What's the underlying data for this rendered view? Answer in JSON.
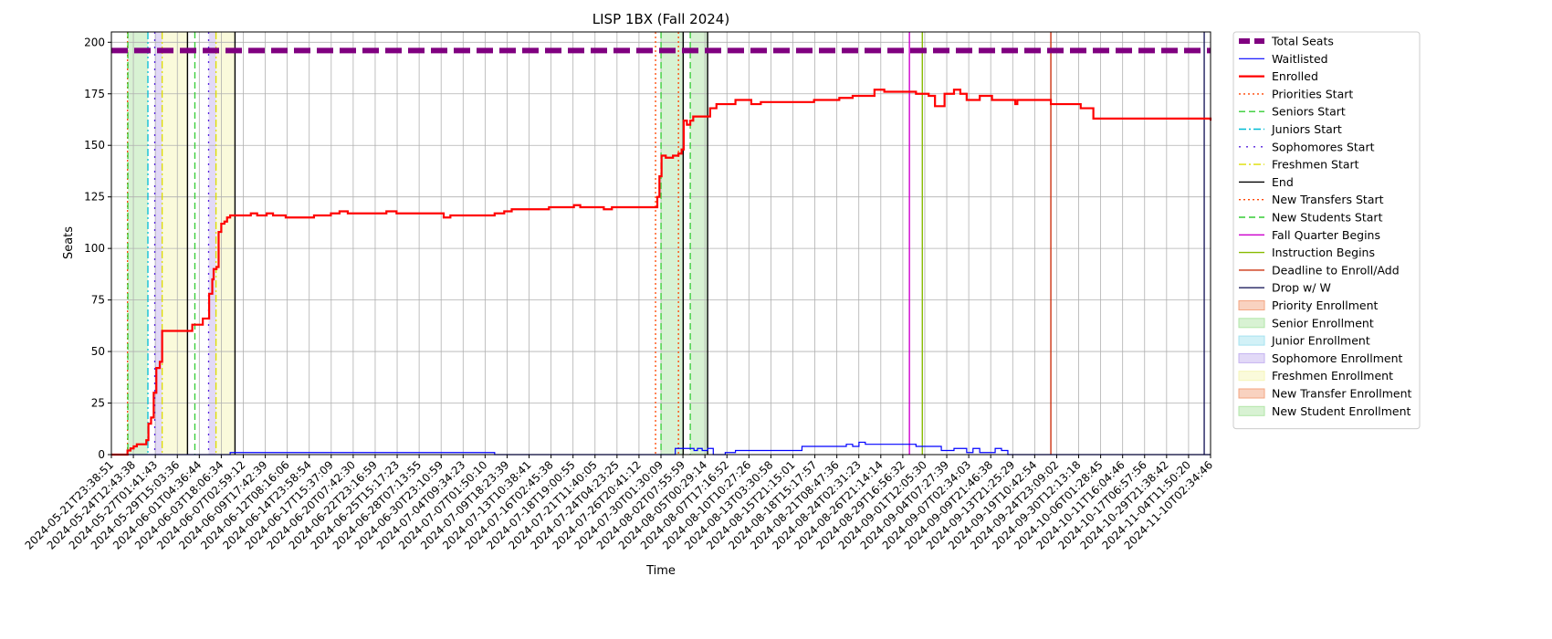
{
  "chart_data": {
    "type": "line",
    "title": "LISP 1BX (Fall 2024)",
    "xlabel": "Time",
    "ylabel": "Seats",
    "ylim": [
      0,
      205
    ],
    "yticks": [
      0,
      25,
      50,
      75,
      100,
      125,
      150,
      175,
      200
    ],
    "grid": true,
    "legend_position": "outside-right",
    "x_range": [
      "2024-05-21T23:38:51",
      "2024-11-11T12:00:00"
    ],
    "xtick_labels": [
      "2024-05-21T23:38:51",
      "2024-05-24T12:43:38",
      "2024-05-27T01:41:43",
      "2024-05-29T15:03:36",
      "2024-06-01T04:36:44",
      "2024-06-03T18:06:34",
      "2024-06-07T02:59:12",
      "2024-06-09T17:42:39",
      "2024-06-12T08:16:06",
      "2024-06-14T23:58:54",
      "2024-06-17T15:37:09",
      "2024-06-20T07:42:30",
      "2024-06-22T23:16:59",
      "2024-06-25T15:17:23",
      "2024-06-28T07:13:55",
      "2024-06-30T23:10:59",
      "2024-07-04T09:34:23",
      "2024-07-07T01:50:10",
      "2024-07-09T18:23:39",
      "2024-07-13T10:38:41",
      "2024-07-16T02:45:38",
      "2024-07-18T19:00:55",
      "2024-07-21T11:40:05",
      "2024-07-24T04:23:25",
      "2024-07-26T20:41:12",
      "2024-07-30T01:30:09",
      "2024-08-02T07:55:59",
      "2024-08-05T00:29:14",
      "2024-08-07T17:16:52",
      "2024-08-10T10:27:26",
      "2024-08-13T03:30:58",
      "2024-08-15T21:15:01",
      "2024-08-18T15:17:57",
      "2024-08-21T08:47:36",
      "2024-08-24T02:31:23",
      "2024-08-26T21:14:14",
      "2024-08-29T16:56:32",
      "2024-09-01T12:05:30",
      "2024-09-04T07:27:39",
      "2024-09-07T02:34:03",
      "2024-09-09T21:46:38",
      "2024-09-13T21:25:29",
      "2024-09-19T10:42:54",
      "2024-09-24T23:09:02",
      "2024-09-30T12:13:18",
      "2024-10-06T01:28:45",
      "2024-10-11T16:04:46",
      "2024-10-17T06:57:56",
      "2024-10-29T21:38:42",
      "2024-11-04T11:50:20",
      "2024-11-10T02:34:46"
    ],
    "series": [
      {
        "name": "Total Seats",
        "color": "#800080",
        "style": "dashed-thick",
        "points": [
          [
            "2024-05-21T23:38:51",
            196
          ],
          [
            "2024-11-11T12:00:00",
            196
          ]
        ]
      },
      {
        "name": "Waitlisted",
        "color": "#0000ff",
        "style": "solid-thin",
        "points": [
          [
            "2024-05-21T23:38:51",
            0
          ],
          [
            "2024-06-09T17:00:00",
            0
          ],
          [
            "2024-06-09T17:42:39",
            1
          ],
          [
            "2024-07-21T11:40:05",
            1
          ],
          [
            "2024-07-21T11:45:00",
            0
          ],
          [
            "2024-08-18T16:00:00",
            0
          ],
          [
            "2024-08-19T00:00:00",
            3
          ],
          [
            "2024-08-21T08:47:36",
            3
          ],
          [
            "2024-08-21T23:00:00",
            2
          ],
          [
            "2024-08-22T12:00:00",
            3
          ],
          [
            "2024-08-23T06:00:00",
            2
          ],
          [
            "2024-08-24T02:31:23",
            3
          ],
          [
            "2024-08-25T00:00:00",
            0
          ],
          [
            "2024-08-26T21:14:14",
            1
          ],
          [
            "2024-08-28T12:00:00",
            2
          ],
          [
            "2024-09-07T02:34:03",
            2
          ],
          [
            "2024-09-08T00:00:00",
            4
          ],
          [
            "2024-09-13T21:25:29",
            4
          ],
          [
            "2024-09-15T00:00:00",
            5
          ],
          [
            "2024-09-16T00:00:00",
            4
          ],
          [
            "2024-09-17T00:00:00",
            6
          ],
          [
            "2024-09-18T00:00:00",
            5
          ],
          [
            "2024-09-24T23:09:02",
            5
          ],
          [
            "2024-09-26T00:00:00",
            4
          ],
          [
            "2024-09-29T00:00:00",
            4
          ],
          [
            "2024-09-30T00:00:00",
            2
          ],
          [
            "2024-10-02T00:00:00",
            3
          ],
          [
            "2024-10-04T00:00:00",
            1
          ],
          [
            "2024-10-05T00:00:00",
            3
          ],
          [
            "2024-10-06T01:28:45",
            1
          ],
          [
            "2024-10-07T12:00:00",
            1
          ],
          [
            "2024-10-08T12:00:00",
            3
          ],
          [
            "2024-10-09T12:00:00",
            2
          ],
          [
            "2024-10-10T12:00:00",
            0
          ],
          [
            "2024-11-11T12:00:00",
            0
          ]
        ]
      },
      {
        "name": "Enrolled",
        "color": "#ff0000",
        "style": "solid-thick",
        "points": [
          [
            "2024-05-21T23:38:51",
            0
          ],
          [
            "2024-05-24T10:00:00",
            0
          ],
          [
            "2024-05-24T12:43:38",
            2
          ],
          [
            "2024-05-25T00:00:00",
            3
          ],
          [
            "2024-05-25T12:00:00",
            4
          ],
          [
            "2024-05-26T00:00:00",
            5
          ],
          [
            "2024-05-27T00:00:00",
            5
          ],
          [
            "2024-05-27T12:00:00",
            7
          ],
          [
            "2024-05-27T20:00:00",
            15
          ],
          [
            "2024-05-28T06:00:00",
            18
          ],
          [
            "2024-05-28T16:00:00",
            30
          ],
          [
            "2024-05-29T02:00:00",
            42
          ],
          [
            "2024-05-29T15:03:36",
            45
          ],
          [
            "2024-05-30T00:00:00",
            60
          ],
          [
            "2024-06-02T12:00:00",
            60
          ],
          [
            "2024-06-03T18:06:34",
            63
          ],
          [
            "2024-06-05T00:00:00",
            63
          ],
          [
            "2024-06-05T10:00:00",
            66
          ],
          [
            "2024-06-06T06:00:00",
            66
          ],
          [
            "2024-06-06T10:00:00",
            78
          ],
          [
            "2024-06-06T22:00:00",
            85
          ],
          [
            "2024-06-07T02:59:12",
            90
          ],
          [
            "2024-06-07T14:00:00",
            91
          ],
          [
            "2024-06-07T22:00:00",
            108
          ],
          [
            "2024-06-08T08:00:00",
            112
          ],
          [
            "2024-06-08T20:00:00",
            113
          ],
          [
            "2024-06-09T06:00:00",
            115
          ],
          [
            "2024-06-09T17:42:39",
            116
          ],
          [
            "2024-06-12T08:16:06",
            116
          ],
          [
            "2024-06-13T00:00:00",
            117
          ],
          [
            "2024-06-14T00:00:00",
            116
          ],
          [
            "2024-06-15T12:00:00",
            117
          ],
          [
            "2024-06-16T12:00:00",
            116
          ],
          [
            "2024-06-17T15:37:09",
            116
          ],
          [
            "2024-06-18T12:00:00",
            115
          ],
          [
            "2024-06-22T23:16:59",
            116
          ],
          [
            "2024-06-25T15:17:23",
            117
          ],
          [
            "2024-06-27T00:00:00",
            118
          ],
          [
            "2024-06-28T07:13:55",
            117
          ],
          [
            "2024-07-04T09:34:23",
            118
          ],
          [
            "2024-07-06T00:00:00",
            117
          ],
          [
            "2024-07-13T10:38:41",
            115
          ],
          [
            "2024-07-14T12:00:00",
            116
          ],
          [
            "2024-07-21T11:40:05",
            117
          ],
          [
            "2024-07-23T00:00:00",
            118
          ],
          [
            "2024-07-24T04:23:25",
            119
          ],
          [
            "2024-07-30T01:30:09",
            120
          ],
          [
            "2024-08-02T07:55:59",
            120
          ],
          [
            "2024-08-03T00:00:00",
            121
          ],
          [
            "2024-08-04T00:00:00",
            120
          ],
          [
            "2024-08-07T17:16:52",
            119
          ],
          [
            "2024-08-09T00:00:00",
            120
          ],
          [
            "2024-08-15T21:15:01",
            120
          ],
          [
            "2024-08-16T04:00:00",
            125
          ],
          [
            "2024-08-16T12:00:00",
            135
          ],
          [
            "2024-08-16T20:00:00",
            145
          ],
          [
            "2024-08-17T12:00:00",
            144
          ],
          [
            "2024-08-18T15:17:57",
            145
          ],
          [
            "2024-08-19T12:00:00",
            146
          ],
          [
            "2024-08-20T00:00:00",
            148
          ],
          [
            "2024-08-20T08:00:00",
            162
          ],
          [
            "2024-08-20T20:00:00",
            160
          ],
          [
            "2024-08-21T08:47:36",
            162
          ],
          [
            "2024-08-21T20:00:00",
            164
          ],
          [
            "2024-08-24T02:31:23",
            164
          ],
          [
            "2024-08-24T12:00:00",
            168
          ],
          [
            "2024-08-25T12:00:00",
            170
          ],
          [
            "2024-08-28T12:00:00",
            172
          ],
          [
            "2024-08-31T00:00:00",
            170
          ],
          [
            "2024-09-01T12:05:30",
            171
          ],
          [
            "2024-09-07T02:34:03",
            171
          ],
          [
            "2024-09-09T21:46:38",
            172
          ],
          [
            "2024-09-13T21:25:29",
            173
          ],
          [
            "2024-09-16T00:00:00",
            174
          ],
          [
            "2024-09-19T10:42:54",
            177
          ],
          [
            "2024-09-21T00:00:00",
            176
          ],
          [
            "2024-09-24T23:09:02",
            176
          ],
          [
            "2024-09-26T00:00:00",
            175
          ],
          [
            "2024-09-28T00:00:00",
            174
          ],
          [
            "2024-09-29T00:00:00",
            169
          ],
          [
            "2024-09-30T12:13:18",
            175
          ],
          [
            "2024-10-02T00:00:00",
            177
          ],
          [
            "2024-10-03T00:00:00",
            175
          ],
          [
            "2024-10-04T00:00:00",
            172
          ],
          [
            "2024-10-06T01:28:45",
            174
          ],
          [
            "2024-10-08T00:00:00",
            172
          ],
          [
            "2024-10-11T16:04:46",
            170
          ],
          [
            "2024-10-12T00:00:00",
            172
          ],
          [
            "2024-10-17T06:57:56",
            170
          ],
          [
            "2024-10-22T00:00:00",
            168
          ],
          [
            "2024-10-24T00:00:00",
            163
          ],
          [
            "2024-10-29T21:38:42",
            163
          ],
          [
            "2024-11-04T11:50:20",
            163
          ],
          [
            "2024-11-10T02:34:46",
            163
          ],
          [
            "2024-11-11T12:00:00",
            162
          ]
        ]
      }
    ],
    "event_lines": [
      {
        "name": "Priorities Start",
        "color": "#ff4500",
        "style": "dotted",
        "x": [
          "2024-05-24T12:43:38",
          "2024-08-15T21:15:01",
          "2024-08-19T12:00:00"
        ]
      },
      {
        "name": "Seniors Start",
        "color": "#33cc33",
        "style": "dashed",
        "x": [
          "2024-05-24T14:00:00",
          "2024-06-04T04:00:00",
          "2024-08-16T18:00:00"
        ]
      },
      {
        "name": "Juniors Start",
        "color": "#00bcd4",
        "style": "dashdot",
        "x": [
          "2024-05-27T18:00:00"
        ]
      },
      {
        "name": "Sophomores Start",
        "color": "#5522dd",
        "style": "dashdot-sparse",
        "x": [
          "2024-05-28T20:00:00",
          "2024-06-06T08:00:00"
        ]
      },
      {
        "name": "Freshmen Start",
        "color": "#dddd00",
        "style": "dashdot",
        "x": [
          "2024-05-30T00:00:00",
          "2024-06-07T12:00:00"
        ]
      },
      {
        "name": "End",
        "color": "#000000",
        "style": "solid",
        "x": [
          "2024-06-03T00:00:00",
          "2024-06-10T12:00:00",
          "2024-08-20T06:00:00",
          "2024-08-24T02:31:23"
        ]
      },
      {
        "name": "New Transfers Start",
        "color": "#ff4500",
        "style": "dotted",
        "x": []
      },
      {
        "name": "New Students Start",
        "color": "#33cc33",
        "style": "dashed",
        "x": [
          "2024-08-21T08:47:36"
        ]
      },
      {
        "name": "Fall Quarter Begins",
        "color": "#cc00cc",
        "style": "solid",
        "x": [
          "2024-09-24T23:09:02"
        ]
      },
      {
        "name": "Instruction Begins",
        "color": "#88bb00",
        "style": "solid",
        "x": [
          "2024-09-27T00:00:00"
        ]
      },
      {
        "name": "Deadline to Enroll/Add",
        "color": "#cc3311",
        "style": "solid",
        "x": [
          "2024-10-17T06:57:56"
        ]
      },
      {
        "name": "Drop w/ W",
        "color": "#1f1f5f",
        "style": "solid",
        "x": [
          "2024-11-10T12:00:00"
        ]
      }
    ],
    "shaded_regions": [
      {
        "name": "Priority Enrollment",
        "color": "#f4a582",
        "ranges": []
      },
      {
        "name": "Senior Enrollment",
        "color": "#b2e6a8",
        "ranges": [
          [
            "2024-05-24T14:00:00",
            "2024-05-27T18:00:00"
          ],
          [
            "2024-08-16T18:00:00",
            "2024-08-20T06:00:00"
          ]
        ]
      },
      {
        "name": "Junior Enrollment",
        "color": "#a6e3f0",
        "ranges": []
      },
      {
        "name": "Sophomore Enrollment",
        "color": "#c6b3f0",
        "ranges": [
          [
            "2024-05-28T20:00:00",
            "2024-05-30T00:00:00"
          ],
          [
            "2024-06-06T08:00:00",
            "2024-06-07T12:00:00"
          ]
        ]
      },
      {
        "name": "Freshmen Enrollment",
        "color": "#f5f5b8",
        "ranges": [
          [
            "2024-05-30T00:00:00",
            "2024-06-03T00:00:00"
          ],
          [
            "2024-06-07T12:00:00",
            "2024-06-10T12:00:00"
          ]
        ]
      },
      {
        "name": "New Transfer Enrollment",
        "color": "#f4a582",
        "ranges": []
      },
      {
        "name": "New Student Enrollment",
        "color": "#b2e6a8",
        "ranges": [
          [
            "2024-08-21T08:47:36",
            "2024-08-24T02:31:23"
          ]
        ]
      }
    ]
  }
}
